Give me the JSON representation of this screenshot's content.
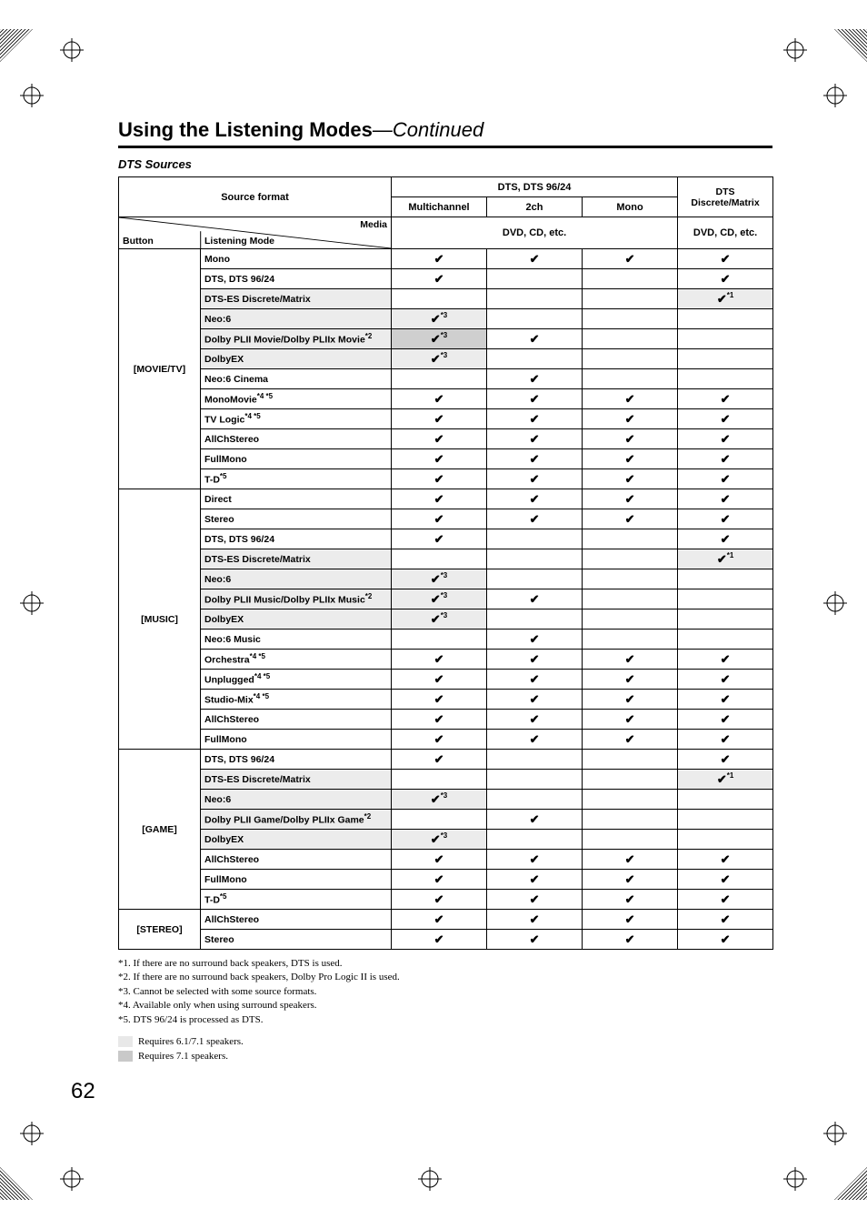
{
  "title": {
    "main": "Using the Listening Modes",
    "continued": "—Continued"
  },
  "subhead": "DTS Sources",
  "headers": {
    "source_format": "Source format",
    "col_group_a": "DTS, DTS 96/24",
    "col_group_b": "DTS\nDiscrete/Matrix",
    "multichannel": "Multichannel",
    "twoch": "2ch",
    "mono": "Mono",
    "media": "Media",
    "media_a": "DVD, CD, etc.",
    "media_b": "DVD, CD, etc.",
    "button": "Button",
    "listening_mode": "Listening Mode"
  },
  "buttons": {
    "movietv": "[MOVIE/TV]",
    "music": "[MUSIC]",
    "game": "[GAME]",
    "stereo": "[STEREO]"
  },
  "colors": {
    "shade_light": "#ececec",
    "shade_dark": "#cfcfcf",
    "legend_61": "#e8e8e8",
    "legend_71": "#c9c9c9"
  },
  "col_widths": [
    "90px",
    "210px",
    "105px",
    "105px",
    "105px",
    "105px"
  ],
  "groups": [
    {
      "button_key": "movietv",
      "rows": [
        {
          "label": "Mono",
          "sup": "",
          "bg": "",
          "marks": [
            "c",
            "c",
            "c",
            "c"
          ],
          "mark_sup": [
            "",
            "",
            "",
            ""
          ],
          "mark_bg": [
            "",
            "",
            "",
            ""
          ]
        },
        {
          "label": "DTS, DTS 96/24",
          "sup": "",
          "bg": "",
          "marks": [
            "c",
            "",
            "",
            "c"
          ],
          "mark_sup": [
            "",
            "",
            "",
            ""
          ],
          "mark_bg": [
            "",
            "",
            "",
            ""
          ]
        },
        {
          "label": "DTS-ES Discrete/Matrix",
          "sup": "",
          "bg": "l",
          "marks": [
            "",
            "",
            "",
            "c"
          ],
          "mark_sup": [
            "",
            "",
            "",
            "*1"
          ],
          "mark_bg": [
            "",
            "",
            "",
            "l"
          ]
        },
        {
          "label": "Neo:6",
          "sup": "",
          "bg": "l",
          "marks": [
            "c",
            "",
            "",
            ""
          ],
          "mark_sup": [
            "*3",
            "",
            "",
            ""
          ],
          "mark_bg": [
            "l",
            "",
            "",
            ""
          ]
        },
        {
          "label": "Dolby PLII Movie/Dolby PLIIx Movie",
          "sup": "*2",
          "bg": "l",
          "marks": [
            "c",
            "c",
            "",
            ""
          ],
          "mark_sup": [
            "*3",
            "",
            "",
            ""
          ],
          "mark_bg": [
            "d",
            "",
            "",
            ""
          ]
        },
        {
          "label": "DolbyEX",
          "sup": "",
          "bg": "l",
          "marks": [
            "c",
            "",
            "",
            ""
          ],
          "mark_sup": [
            "*3",
            "",
            "",
            ""
          ],
          "mark_bg": [
            "l",
            "",
            "",
            ""
          ]
        },
        {
          "label": "Neo:6 Cinema",
          "sup": "",
          "bg": "",
          "marks": [
            "",
            "c",
            "",
            ""
          ],
          "mark_sup": [
            "",
            "",
            "",
            ""
          ],
          "mark_bg": [
            "",
            "",
            "",
            ""
          ]
        },
        {
          "label": "MonoMovie",
          "sup": "*4 *5",
          "bg": "",
          "marks": [
            "c",
            "c",
            "c",
            "c"
          ],
          "mark_sup": [
            "",
            "",
            "",
            ""
          ],
          "mark_bg": [
            "",
            "",
            "",
            ""
          ]
        },
        {
          "label": "TV Logic",
          "sup": "*4 *5",
          "bg": "",
          "marks": [
            "c",
            "c",
            "c",
            "c"
          ],
          "mark_sup": [
            "",
            "",
            "",
            ""
          ],
          "mark_bg": [
            "",
            "",
            "",
            ""
          ]
        },
        {
          "label": "AllChStereo",
          "sup": "",
          "bg": "",
          "marks": [
            "c",
            "c",
            "c",
            "c"
          ],
          "mark_sup": [
            "",
            "",
            "",
            ""
          ],
          "mark_bg": [
            "",
            "",
            "",
            ""
          ]
        },
        {
          "label": "FullMono",
          "sup": "",
          "bg": "",
          "marks": [
            "c",
            "c",
            "c",
            "c"
          ],
          "mark_sup": [
            "",
            "",
            "",
            ""
          ],
          "mark_bg": [
            "",
            "",
            "",
            ""
          ]
        },
        {
          "label": "T-D",
          "sup": "*5",
          "bg": "",
          "marks": [
            "c",
            "c",
            "c",
            "c"
          ],
          "mark_sup": [
            "",
            "",
            "",
            ""
          ],
          "mark_bg": [
            "",
            "",
            "",
            ""
          ]
        }
      ]
    },
    {
      "button_key": "music",
      "rows": [
        {
          "label": "Direct",
          "sup": "",
          "bg": "",
          "marks": [
            "c",
            "c",
            "c",
            "c"
          ],
          "mark_sup": [
            "",
            "",
            "",
            ""
          ],
          "mark_bg": [
            "",
            "",
            "",
            ""
          ]
        },
        {
          "label": "Stereo",
          "sup": "",
          "bg": "",
          "marks": [
            "c",
            "c",
            "c",
            "c"
          ],
          "mark_sup": [
            "",
            "",
            "",
            ""
          ],
          "mark_bg": [
            "",
            "",
            "",
            ""
          ]
        },
        {
          "label": "DTS, DTS 96/24",
          "sup": "",
          "bg": "",
          "marks": [
            "c",
            "",
            "",
            "c"
          ],
          "mark_sup": [
            "",
            "",
            "",
            ""
          ],
          "mark_bg": [
            "",
            "",
            "",
            ""
          ]
        },
        {
          "label": "DTS-ES Discrete/Matrix",
          "sup": "",
          "bg": "l",
          "marks": [
            "",
            "",
            "",
            "c"
          ],
          "mark_sup": [
            "",
            "",
            "",
            "*1"
          ],
          "mark_bg": [
            "",
            "",
            "",
            "l"
          ]
        },
        {
          "label": "Neo:6",
          "sup": "",
          "bg": "l",
          "marks": [
            "c",
            "",
            "",
            ""
          ],
          "mark_sup": [
            "*3",
            "",
            "",
            ""
          ],
          "mark_bg": [
            "l",
            "",
            "",
            ""
          ]
        },
        {
          "label": "Dolby PLII Music/Dolby PLIIx Music",
          "sup": "*2",
          "bg": "l",
          "marks": [
            "c",
            "c",
            "",
            ""
          ],
          "mark_sup": [
            "*3",
            "",
            "",
            ""
          ],
          "mark_bg": [
            "l",
            "",
            "",
            ""
          ]
        },
        {
          "label": "DolbyEX",
          "sup": "",
          "bg": "l",
          "marks": [
            "c",
            "",
            "",
            ""
          ],
          "mark_sup": [
            "*3",
            "",
            "",
            ""
          ],
          "mark_bg": [
            "l",
            "",
            "",
            ""
          ]
        },
        {
          "label": "Neo:6 Music",
          "sup": "",
          "bg": "",
          "marks": [
            "",
            "c",
            "",
            ""
          ],
          "mark_sup": [
            "",
            "",
            "",
            ""
          ],
          "mark_bg": [
            "",
            "",
            "",
            ""
          ]
        },
        {
          "label": "Orchestra",
          "sup": "*4 *5",
          "bg": "",
          "marks": [
            "c",
            "c",
            "c",
            "c"
          ],
          "mark_sup": [
            "",
            "",
            "",
            ""
          ],
          "mark_bg": [
            "",
            "",
            "",
            ""
          ]
        },
        {
          "label": "Unplugged",
          "sup": "*4 *5",
          "bg": "",
          "marks": [
            "c",
            "c",
            "c",
            "c"
          ],
          "mark_sup": [
            "",
            "",
            "",
            ""
          ],
          "mark_bg": [
            "",
            "",
            "",
            ""
          ]
        },
        {
          "label": "Studio-Mix",
          "sup": "*4 *5",
          "bg": "",
          "marks": [
            "c",
            "c",
            "c",
            "c"
          ],
          "mark_sup": [
            "",
            "",
            "",
            ""
          ],
          "mark_bg": [
            "",
            "",
            "",
            ""
          ]
        },
        {
          "label": "AllChStereo",
          "sup": "",
          "bg": "",
          "marks": [
            "c",
            "c",
            "c",
            "c"
          ],
          "mark_sup": [
            "",
            "",
            "",
            ""
          ],
          "mark_bg": [
            "",
            "",
            "",
            ""
          ]
        },
        {
          "label": "FullMono",
          "sup": "",
          "bg": "",
          "marks": [
            "c",
            "c",
            "c",
            "c"
          ],
          "mark_sup": [
            "",
            "",
            "",
            ""
          ],
          "mark_bg": [
            "",
            "",
            "",
            ""
          ]
        }
      ]
    },
    {
      "button_key": "game",
      "rows": [
        {
          "label": "DTS, DTS 96/24",
          "sup": "",
          "bg": "",
          "marks": [
            "c",
            "",
            "",
            "c"
          ],
          "mark_sup": [
            "",
            "",
            "",
            ""
          ],
          "mark_bg": [
            "",
            "",
            "",
            ""
          ]
        },
        {
          "label": "DTS-ES Discrete/Matrix",
          "sup": "",
          "bg": "l",
          "marks": [
            "",
            "",
            "",
            "c"
          ],
          "mark_sup": [
            "",
            "",
            "",
            "*1"
          ],
          "mark_bg": [
            "",
            "",
            "",
            "l"
          ]
        },
        {
          "label": "Neo:6",
          "sup": "",
          "bg": "l",
          "marks": [
            "c",
            "",
            "",
            ""
          ],
          "mark_sup": [
            "*3",
            "",
            "",
            ""
          ],
          "mark_bg": [
            "l",
            "",
            "",
            ""
          ]
        },
        {
          "label": "Dolby PLII Game/Dolby PLIIx Game",
          "sup": "*2",
          "bg": "l",
          "marks": [
            "",
            "c",
            "",
            ""
          ],
          "mark_sup": [
            "",
            "",
            "",
            ""
          ],
          "mark_bg": [
            "",
            "",
            "",
            ""
          ]
        },
        {
          "label": "DolbyEX",
          "sup": "",
          "bg": "l",
          "marks": [
            "c",
            "",
            "",
            ""
          ],
          "mark_sup": [
            "*3",
            "",
            "",
            ""
          ],
          "mark_bg": [
            "l",
            "",
            "",
            ""
          ]
        },
        {
          "label": "AllChStereo",
          "sup": "",
          "bg": "",
          "marks": [
            "c",
            "c",
            "c",
            "c"
          ],
          "mark_sup": [
            "",
            "",
            "",
            ""
          ],
          "mark_bg": [
            "",
            "",
            "",
            ""
          ]
        },
        {
          "label": "FullMono",
          "sup": "",
          "bg": "",
          "marks": [
            "c",
            "c",
            "c",
            "c"
          ],
          "mark_sup": [
            "",
            "",
            "",
            ""
          ],
          "mark_bg": [
            "",
            "",
            "",
            ""
          ]
        },
        {
          "label": "T-D",
          "sup": "*5",
          "bg": "",
          "marks": [
            "c",
            "c",
            "c",
            "c"
          ],
          "mark_sup": [
            "",
            "",
            "",
            ""
          ],
          "mark_bg": [
            "",
            "",
            "",
            ""
          ]
        }
      ]
    },
    {
      "button_key": "stereo",
      "rows": [
        {
          "label": "AllChStereo",
          "sup": "",
          "bg": "",
          "marks": [
            "c",
            "c",
            "c",
            "c"
          ],
          "mark_sup": [
            "",
            "",
            "",
            ""
          ],
          "mark_bg": [
            "",
            "",
            "",
            ""
          ]
        },
        {
          "label": "Stereo",
          "sup": "",
          "bg": "",
          "marks": [
            "c",
            "c",
            "c",
            "c"
          ],
          "mark_sup": [
            "",
            "",
            "",
            ""
          ],
          "mark_bg": [
            "",
            "",
            "",
            ""
          ]
        }
      ]
    }
  ],
  "footnotes": [
    "*1.  If there are no surround back speakers, DTS is used.",
    "*2.  If there are no surround back speakers, Dolby Pro Logic II is used.",
    "*3.  Cannot be selected with some source formats.",
    "*4.  Available only when using surround speakers.",
    "*5.  DTS 96/24 is processed as DTS."
  ],
  "legend": {
    "a": "Requires 6.1/7.1 speakers.",
    "b": "Requires 7.1 speakers."
  },
  "page_number": "62"
}
